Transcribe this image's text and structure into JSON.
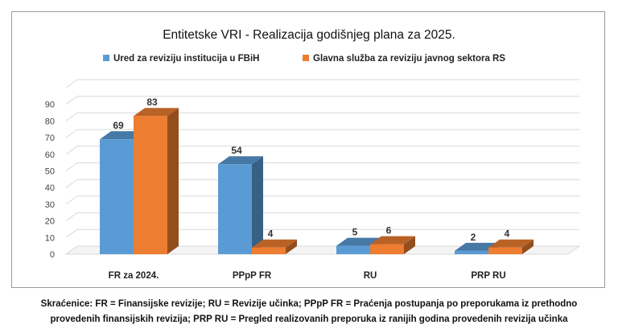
{
  "chart_data": {
    "type": "bar",
    "title": "Entitetske VRI - Realizacija godišnjeg plana za 2025.",
    "categories": [
      "FR za 2024.",
      "PPpP FR",
      "RU",
      "PRP RU"
    ],
    "series": [
      {
        "name": "Ured za reviziju institucija u FBiH",
        "values": [
          69,
          54,
          5,
          2
        ],
        "color": "#5B9BD5"
      },
      {
        "name": "Glavna služba za reviziju javnog sektora RS",
        "values": [
          83,
          4,
          6,
          4
        ],
        "color": "#ED7D31"
      }
    ],
    "yticks": [
      0,
      10,
      20,
      30,
      40,
      50,
      60,
      70,
      80,
      90
    ],
    "ylim": [
      0,
      100
    ],
    "grid": true,
    "legend_position": "top",
    "style": "3d-clustered-column"
  },
  "footnote": {
    "line1": "Skraćenice: FR = Finansijske revizije; RU = Revizije učinka; PPpP FR = Praćenja postupanja po preporukama iz prethodno",
    "line2": "provedenih finansijskih revizija; PRP RU = Pregled realizovanih preporuka iz ranijih godina provedenih revizija učinka"
  }
}
